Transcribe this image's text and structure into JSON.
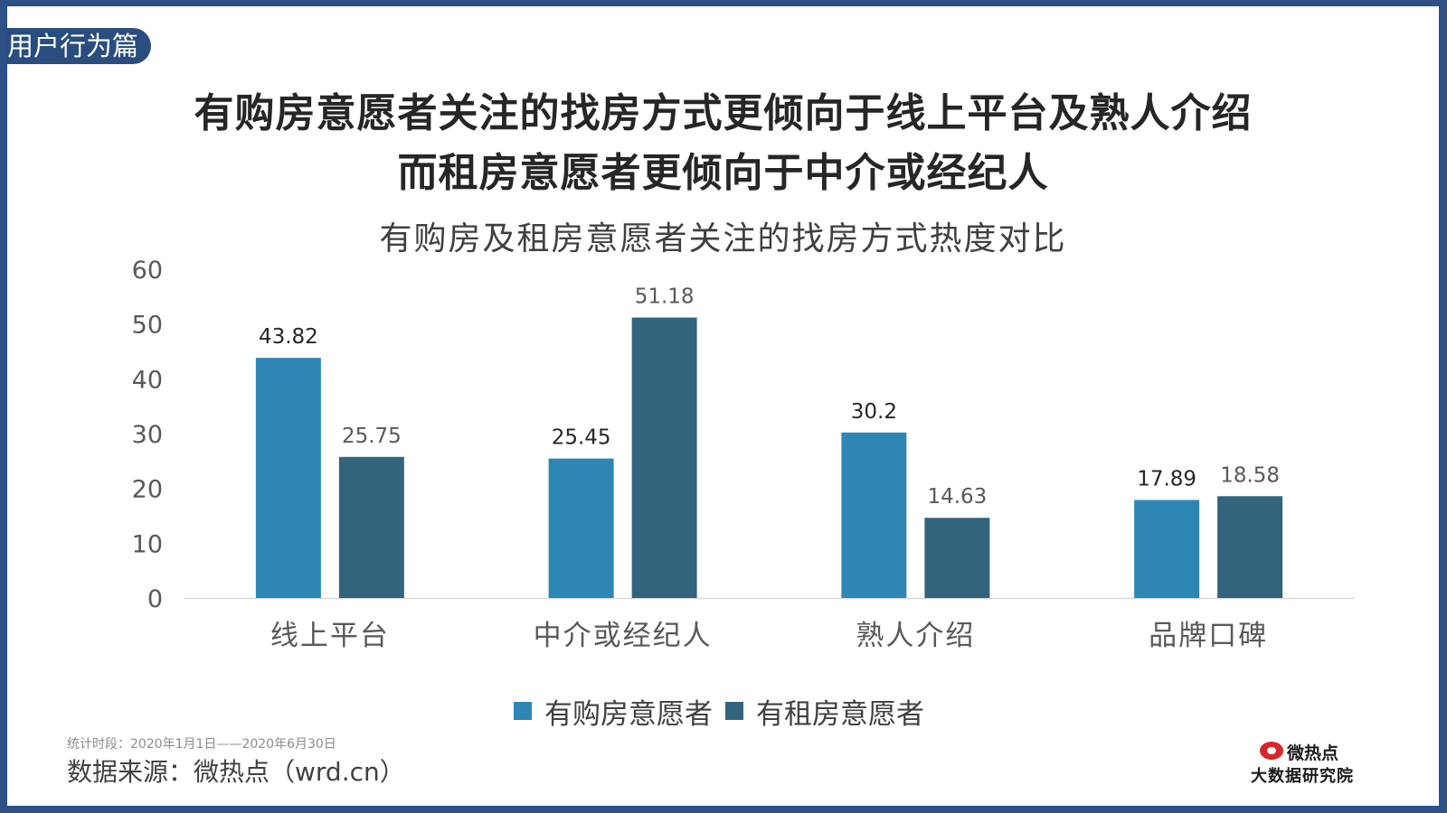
{
  "section_tag": "用户行为篇",
  "headline": {
    "line1": "有购房意愿者关注的找房方式更倾向于线上平台及熟人介绍",
    "line2": "而租房意愿者更倾向于中介或经纪人"
  },
  "footer": {
    "period": "统计时段：2020年1月1日——2020年6月30日",
    "source": "数据来源：微热点（wrd.cn）"
  },
  "logo": {
    "brand": "微热点",
    "sub": "大数据研究院"
  },
  "colors": {
    "frame": "#2d5186",
    "buy": "#2e86b4",
    "rent": "#32647d",
    "tag": "#2a4d80"
  },
  "chart_data": {
    "type": "bar",
    "title": "有购房及租房意愿者关注的找房方式热度对比",
    "categories": [
      "线上平台",
      "中介或经纪人",
      "熟人介绍",
      "品牌口碑"
    ],
    "series": [
      {
        "name": "有购房意愿者",
        "values": [
          43.82,
          25.45,
          30.2,
          17.89
        ],
        "labels": [
          "43.82",
          "25.45",
          "30.2",
          "17.89"
        ],
        "color": "#2e86b4"
      },
      {
        "name": "有租房意愿者",
        "values": [
          25.75,
          51.18,
          14.63,
          18.58
        ],
        "labels": [
          "25.75",
          "51.18",
          "14.63",
          "18.58"
        ],
        "color": "#32647d"
      }
    ],
    "yticks": [
      0,
      10,
      20,
      30,
      40,
      50,
      60
    ],
    "ylim": [
      0,
      60
    ],
    "xlabel": "",
    "ylabel": "",
    "grid": false,
    "legend": "bottom"
  }
}
